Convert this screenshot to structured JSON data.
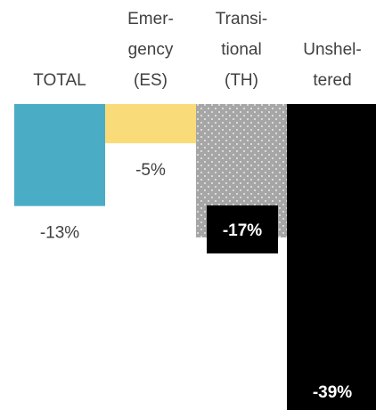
{
  "chart_data": {
    "type": "bar",
    "categories": [
      [
        "TOTAL"
      ],
      [
        "Emer-",
        "gency",
        "(ES)"
      ],
      [
        "Transi-",
        "tional",
        "(TH)"
      ],
      [
        "Unshel-",
        "tered"
      ]
    ],
    "values": [
      -13,
      -5,
      -17,
      -39
    ],
    "value_labels": [
      "-13%",
      "-5%",
      "-17%",
      "-39%"
    ],
    "colors": [
      "#4bacc6",
      "#fadb7a",
      "#a6a6a6",
      "#000000"
    ],
    "ylim": [
      -39,
      0
    ]
  }
}
